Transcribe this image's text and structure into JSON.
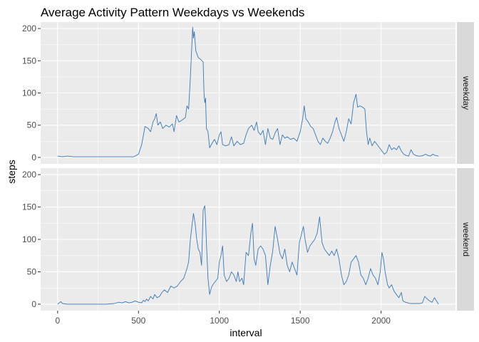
{
  "chart_data": {
    "type": "line",
    "title": "Average Activity Pattern Weekdays vs Weekends",
    "xlabel": "interval",
    "ylabel": "steps",
    "xlim": [
      -105,
      2460
    ],
    "ylim": [
      -10,
      210
    ],
    "x_ticks": [
      0,
      500,
      1000,
      1500,
      2000
    ],
    "y_ticks": [
      0,
      50,
      100,
      150,
      200
    ],
    "grid": true,
    "legend": "none",
    "colors": {
      "line": "#3a78b3",
      "panel_bg": "#ebebeb",
      "grid": "#ffffff",
      "strip_bg": "#d9d9d9"
    },
    "panels": [
      {
        "facet": "weekday",
        "points": [
          [
            0,
            2
          ],
          [
            30,
            1
          ],
          [
            60,
            2
          ],
          [
            100,
            1
          ],
          [
            150,
            1
          ],
          [
            200,
            1
          ],
          [
            300,
            1
          ],
          [
            400,
            1
          ],
          [
            470,
            1
          ],
          [
            500,
            5
          ],
          [
            520,
            20
          ],
          [
            540,
            48
          ],
          [
            560,
            45
          ],
          [
            575,
            40
          ],
          [
            590,
            55
          ],
          [
            600,
            60
          ],
          [
            610,
            68
          ],
          [
            620,
            50
          ],
          [
            635,
            55
          ],
          [
            650,
            45
          ],
          [
            670,
            50
          ],
          [
            690,
            47
          ],
          [
            710,
            52
          ],
          [
            720,
            40
          ],
          [
            735,
            65
          ],
          [
            750,
            55
          ],
          [
            770,
            58
          ],
          [
            790,
            62
          ],
          [
            800,
            80
          ],
          [
            810,
            75
          ],
          [
            820,
            120
          ],
          [
            830,
            175
          ],
          [
            835,
            202
          ],
          [
            840,
            185
          ],
          [
            845,
            195
          ],
          [
            855,
            165
          ],
          [
            870,
            155
          ],
          [
            885,
            152
          ],
          [
            900,
            148
          ],
          [
            905,
            100
          ],
          [
            910,
            85
          ],
          [
            915,
            92
          ],
          [
            920,
            45
          ],
          [
            930,
            40
          ],
          [
            940,
            15
          ],
          [
            955,
            22
          ],
          [
            970,
            28
          ],
          [
            985,
            20
          ],
          [
            1000,
            35
          ],
          [
            1010,
            40
          ],
          [
            1020,
            20
          ],
          [
            1040,
            18
          ],
          [
            1060,
            20
          ],
          [
            1075,
            32
          ],
          [
            1090,
            18
          ],
          [
            1110,
            25
          ],
          [
            1130,
            20
          ],
          [
            1150,
            22
          ],
          [
            1165,
            35
          ],
          [
            1180,
            45
          ],
          [
            1200,
            50
          ],
          [
            1215,
            42
          ],
          [
            1230,
            55
          ],
          [
            1240,
            40
          ],
          [
            1255,
            35
          ],
          [
            1270,
            42
          ],
          [
            1285,
            20
          ],
          [
            1300,
            45
          ],
          [
            1315,
            30
          ],
          [
            1330,
            28
          ],
          [
            1345,
            38
          ],
          [
            1360,
            45
          ],
          [
            1375,
            20
          ],
          [
            1390,
            35
          ],
          [
            1405,
            30
          ],
          [
            1420,
            32
          ],
          [
            1440,
            28
          ],
          [
            1460,
            30
          ],
          [
            1480,
            25
          ],
          [
            1500,
            40
          ],
          [
            1515,
            60
          ],
          [
            1525,
            80
          ],
          [
            1535,
            60
          ],
          [
            1550,
            55
          ],
          [
            1565,
            48
          ],
          [
            1580,
            45
          ],
          [
            1595,
            35
          ],
          [
            1610,
            25
          ],
          [
            1625,
            20
          ],
          [
            1640,
            30
          ],
          [
            1655,
            25
          ],
          [
            1670,
            22
          ],
          [
            1685,
            30
          ],
          [
            1700,
            40
          ],
          [
            1715,
            55
          ],
          [
            1725,
            62
          ],
          [
            1740,
            45
          ],
          [
            1755,
            35
          ],
          [
            1770,
            25
          ],
          [
            1785,
            40
          ],
          [
            1800,
            60
          ],
          [
            1815,
            52
          ],
          [
            1830,
            85
          ],
          [
            1845,
            98
          ],
          [
            1855,
            78
          ],
          [
            1870,
            80
          ],
          [
            1885,
            78
          ],
          [
            1900,
            75
          ],
          [
            1910,
            40
          ],
          [
            1920,
            20
          ],
          [
            1930,
            30
          ],
          [
            1945,
            18
          ],
          [
            1960,
            25
          ],
          [
            1975,
            20
          ],
          [
            1990,
            15
          ],
          [
            2005,
            10
          ],
          [
            2020,
            5
          ],
          [
            2035,
            8
          ],
          [
            2050,
            20
          ],
          [
            2065,
            12
          ],
          [
            2080,
            15
          ],
          [
            2095,
            12
          ],
          [
            2110,
            18
          ],
          [
            2125,
            10
          ],
          [
            2140,
            5
          ],
          [
            2155,
            3
          ],
          [
            2170,
            2
          ],
          [
            2185,
            12
          ],
          [
            2200,
            5
          ],
          [
            2215,
            3
          ],
          [
            2230,
            2
          ],
          [
            2245,
            2
          ],
          [
            2260,
            3
          ],
          [
            2275,
            5
          ],
          [
            2290,
            3
          ],
          [
            2305,
            2
          ],
          [
            2320,
            5
          ],
          [
            2335,
            3
          ],
          [
            2355,
            2
          ]
        ]
      },
      {
        "facet": "weekend",
        "points": [
          [
            0,
            0
          ],
          [
            20,
            4
          ],
          [
            30,
            1
          ],
          [
            60,
            0
          ],
          [
            100,
            0
          ],
          [
            150,
            0
          ],
          [
            200,
            0
          ],
          [
            250,
            0
          ],
          [
            300,
            0
          ],
          [
            350,
            1
          ],
          [
            380,
            3
          ],
          [
            400,
            2
          ],
          [
            420,
            4
          ],
          [
            440,
            2
          ],
          [
            460,
            3
          ],
          [
            480,
            5
          ],
          [
            500,
            3
          ],
          [
            520,
            2
          ],
          [
            530,
            6
          ],
          [
            540,
            4
          ],
          [
            550,
            8
          ],
          [
            560,
            5
          ],
          [
            575,
            12
          ],
          [
            590,
            8
          ],
          [
            600,
            15
          ],
          [
            615,
            10
          ],
          [
            630,
            12
          ],
          [
            645,
            18
          ],
          [
            660,
            22
          ],
          [
            680,
            18
          ],
          [
            700,
            28
          ],
          [
            720,
            25
          ],
          [
            740,
            28
          ],
          [
            760,
            35
          ],
          [
            780,
            40
          ],
          [
            800,
            55
          ],
          [
            810,
            65
          ],
          [
            820,
            98
          ],
          [
            830,
            120
          ],
          [
            840,
            140
          ],
          [
            850,
            125
          ],
          [
            860,
            100
          ],
          [
            870,
            85
          ],
          [
            880,
            80
          ],
          [
            890,
            60
          ],
          [
            900,
            145
          ],
          [
            910,
            152
          ],
          [
            915,
            130
          ],
          [
            920,
            95
          ],
          [
            930,
            40
          ],
          [
            940,
            15
          ],
          [
            950,
            25
          ],
          [
            960,
            30
          ],
          [
            975,
            35
          ],
          [
            990,
            40
          ],
          [
            1000,
            65
          ],
          [
            1010,
            75
          ],
          [
            1020,
            90
          ],
          [
            1030,
            45
          ],
          [
            1045,
            35
          ],
          [
            1060,
            40
          ],
          [
            1075,
            50
          ],
          [
            1090,
            45
          ],
          [
            1105,
            35
          ],
          [
            1115,
            50
          ],
          [
            1125,
            35
          ],
          [
            1140,
            40
          ],
          [
            1150,
            30
          ],
          [
            1165,
            80
          ],
          [
            1180,
            75
          ],
          [
            1195,
            110
          ],
          [
            1205,
            125
          ],
          [
            1215,
            70
          ],
          [
            1225,
            60
          ],
          [
            1240,
            85
          ],
          [
            1255,
            90
          ],
          [
            1270,
            85
          ],
          [
            1285,
            75
          ],
          [
            1300,
            30
          ],
          [
            1315,
            60
          ],
          [
            1330,
            82
          ],
          [
            1345,
            120
          ],
          [
            1360,
            100
          ],
          [
            1375,
            78
          ],
          [
            1390,
            70
          ],
          [
            1405,
            85
          ],
          [
            1420,
            60
          ],
          [
            1435,
            50
          ],
          [
            1450,
            65
          ],
          [
            1465,
            55
          ],
          [
            1480,
            45
          ],
          [
            1495,
            95
          ],
          [
            1510,
            110
          ],
          [
            1520,
            120
          ],
          [
            1530,
            100
          ],
          [
            1545,
            80
          ],
          [
            1560,
            90
          ],
          [
            1575,
            95
          ],
          [
            1590,
            100
          ],
          [
            1605,
            110
          ],
          [
            1620,
            135
          ],
          [
            1635,
            95
          ],
          [
            1650,
            85
          ],
          [
            1665,
            80
          ],
          [
            1680,
            75
          ],
          [
            1695,
            82
          ],
          [
            1710,
            75
          ],
          [
            1725,
            85
          ],
          [
            1740,
            70
          ],
          [
            1755,
            45
          ],
          [
            1770,
            30
          ],
          [
            1785,
            35
          ],
          [
            1800,
            45
          ],
          [
            1815,
            65
          ],
          [
            1830,
            70
          ],
          [
            1845,
            75
          ],
          [
            1860,
            65
          ],
          [
            1875,
            45
          ],
          [
            1890,
            40
          ],
          [
            1905,
            30
          ],
          [
            1920,
            40
          ],
          [
            1935,
            55
          ],
          [
            1950,
            45
          ],
          [
            1965,
            40
          ],
          [
            1980,
            30
          ],
          [
            1995,
            50
          ],
          [
            2005,
            80
          ],
          [
            2015,
            70
          ],
          [
            2025,
            50
          ],
          [
            2040,
            30
          ],
          [
            2050,
            25
          ],
          [
            2065,
            30
          ],
          [
            2080,
            20
          ],
          [
            2095,
            15
          ],
          [
            2110,
            10
          ],
          [
            2125,
            18
          ],
          [
            2135,
            5
          ],
          [
            2150,
            3
          ],
          [
            2165,
            2
          ],
          [
            2180,
            1
          ],
          [
            2200,
            1
          ],
          [
            2220,
            1
          ],
          [
            2240,
            1
          ],
          [
            2255,
            2
          ],
          [
            2270,
            12
          ],
          [
            2285,
            8
          ],
          [
            2300,
            5
          ],
          [
            2315,
            3
          ],
          [
            2330,
            10
          ],
          [
            2340,
            6
          ],
          [
            2355,
            0
          ]
        ]
      }
    ]
  }
}
